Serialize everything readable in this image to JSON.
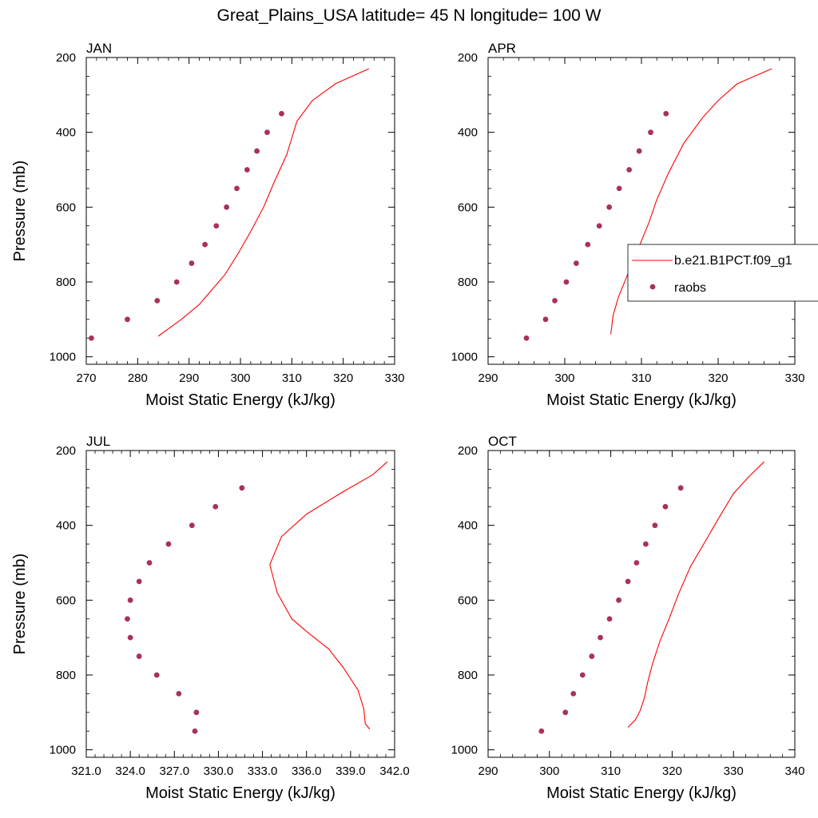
{
  "title": "Great_Plains_USA  latitude= 45 N longitude= 100 W",
  "colors": {
    "model": "#ff0000",
    "obs": "#a83258"
  },
  "legend": {
    "entries": [
      {
        "label": "b.e21.B1PCT.f09_g1",
        "kind": "line"
      },
      {
        "label": "raobs",
        "kind": "marker"
      }
    ]
  },
  "chart_data": [
    {
      "type": "line",
      "panel": "JAN",
      "xlabel": "Moist Static Energy (kJ/kg)",
      "ylabel": "Pressure (mb)",
      "xlim": [
        270,
        330
      ],
      "ylim": [
        1020,
        200
      ],
      "xticks": [
        270,
        280,
        290,
        300,
        310,
        320,
        330
      ],
      "xtick_labels": [
        "270",
        "280",
        "290",
        "300",
        "310",
        "320",
        "330"
      ],
      "yticks": [
        200,
        400,
        600,
        800,
        1000
      ],
      "series": [
        {
          "kind": "line",
          "x": [
            284.0,
            285.5,
            288.5,
            292.0,
            294.5,
            297.0,
            299.5,
            302.0,
            304.5,
            306.5,
            309.0,
            311.0,
            314.0,
            318.5,
            325.0
          ],
          "y": [
            945,
            930,
            900,
            860,
            820,
            780,
            725,
            665,
            600,
            535,
            460,
            370,
            315,
            270,
            230
          ]
        },
        {
          "kind": "scatter",
          "x": [
            271.0,
            278.0,
            283.8,
            287.6,
            290.5,
            293.1,
            295.3,
            297.3,
            299.3,
            301.3,
            303.2,
            305.2,
            308.0
          ],
          "y": [
            950,
            900,
            850,
            800,
            750,
            700,
            650,
            600,
            550,
            500,
            450,
            400,
            350
          ]
        }
      ]
    },
    {
      "type": "line",
      "panel": "APR",
      "xlabel": "Moist Static Energy (kJ/kg)",
      "ylabel": "",
      "xlim": [
        290,
        330
      ],
      "ylim": [
        1020,
        200
      ],
      "xticks": [
        290,
        300,
        310,
        320,
        330
      ],
      "xtick_labels": [
        "290",
        "300",
        "310",
        "320",
        "330"
      ],
      "yticks": [
        200,
        400,
        600,
        800,
        1000
      ],
      "series": [
        {
          "kind": "line",
          "x": [
            306.0,
            306.3,
            307.0,
            308.0,
            309.0,
            310.0,
            311.0,
            312.0,
            313.5,
            315.5,
            318.0,
            320.0,
            322.5,
            327.0
          ],
          "y": [
            940,
            890,
            840,
            790,
            740,
            690,
            640,
            580,
            510,
            430,
            360,
            315,
            270,
            230
          ]
        },
        {
          "kind": "scatter",
          "x": [
            295.0,
            297.5,
            298.7,
            300.2,
            301.5,
            303.0,
            304.5,
            305.8,
            307.1,
            308.4,
            309.7,
            311.2,
            313.2
          ],
          "y": [
            950,
            900,
            850,
            800,
            750,
            700,
            650,
            600,
            550,
            500,
            450,
            400,
            350
          ]
        }
      ]
    },
    {
      "type": "line",
      "panel": "JUL",
      "xlabel": "Moist Static Energy (kJ/kg)",
      "ylabel": "Pressure (mb)",
      "xlim": [
        321,
        342
      ],
      "ylim": [
        1020,
        200
      ],
      "xticks": [
        321,
        324,
        327,
        330,
        333,
        336,
        339,
        342
      ],
      "xtick_labels": [
        "321.0",
        "324.0",
        "327.0",
        "330.0",
        "333.0",
        "336.0",
        "339.0",
        "342.0"
      ],
      "yticks": [
        200,
        400,
        600,
        800,
        1000
      ],
      "series": [
        {
          "kind": "line",
          "x": [
            340.3,
            340.0,
            339.9,
            339.5,
            338.5,
            337.5,
            336.2,
            335.0,
            334.0,
            333.5,
            334.3,
            336.0,
            338.5,
            340.5,
            341.5
          ],
          "y": [
            945,
            930,
            890,
            840,
            780,
            730,
            690,
            650,
            580,
            505,
            430,
            370,
            310,
            265,
            230
          ]
        },
        {
          "kind": "scatter",
          "x": [
            328.4,
            328.5,
            327.3,
            325.8,
            324.6,
            324.0,
            323.8,
            324.0,
            324.6,
            325.3,
            326.6,
            328.2,
            329.8,
            331.6
          ],
          "y": [
            950,
            900,
            850,
            800,
            750,
            700,
            650,
            600,
            550,
            500,
            450,
            400,
            350,
            300
          ]
        }
      ]
    },
    {
      "type": "line",
      "panel": "OCT",
      "xlabel": "Moist Static Energy (kJ/kg)",
      "ylabel": "",
      "xlim": [
        290,
        340
      ],
      "ylim": [
        1020,
        200
      ],
      "xticks": [
        290,
        300,
        310,
        320,
        330,
        340
      ],
      "xtick_labels": [
        "290",
        "300",
        "310",
        "320",
        "330",
        "340"
      ],
      "yticks": [
        200,
        400,
        600,
        800,
        1000
      ],
      "series": [
        {
          "kind": "line",
          "x": [
            312.8,
            314.0,
            314.8,
            315.5,
            316.0,
            316.8,
            318.0,
            319.5,
            321.0,
            323.0,
            325.5,
            327.8,
            330.0,
            332.5,
            335.0
          ],
          "y": [
            940,
            920,
            895,
            860,
            820,
            770,
            710,
            650,
            585,
            510,
            440,
            375,
            315,
            270,
            230
          ]
        },
        {
          "kind": "scatter",
          "x": [
            298.7,
            302.6,
            303.9,
            305.4,
            306.9,
            308.3,
            309.8,
            311.3,
            312.8,
            314.2,
            315.7,
            317.2,
            318.9,
            321.4
          ],
          "y": [
            950,
            900,
            850,
            800,
            750,
            700,
            650,
            600,
            550,
            500,
            450,
            400,
            350,
            300
          ]
        }
      ]
    }
  ]
}
